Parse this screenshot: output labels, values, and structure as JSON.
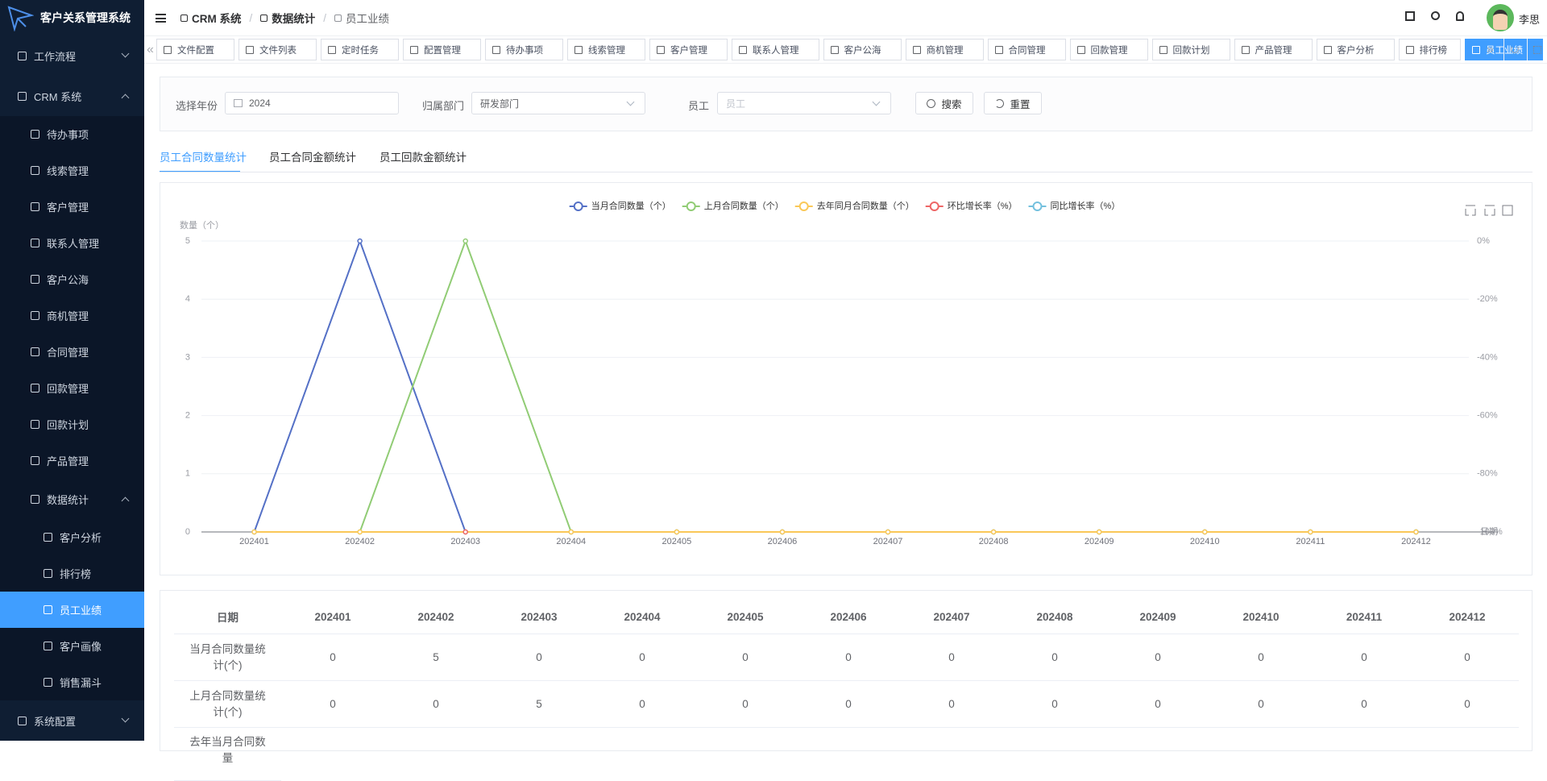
{
  "app": {
    "title": "客户关系管理系统"
  },
  "header": {
    "breadcrumb": [
      "CRM 系统",
      "数据统计",
      "员工业绩"
    ],
    "user": "李思"
  },
  "sidebar": {
    "menu": [
      {
        "label": "工作流程"
      },
      {
        "label": "CRM 系统",
        "children": [
          {
            "label": "待办事项"
          },
          {
            "label": "线索管理"
          },
          {
            "label": "客户管理"
          },
          {
            "label": "联系人管理"
          },
          {
            "label": "客户公海"
          },
          {
            "label": "商机管理"
          },
          {
            "label": "合同管理"
          },
          {
            "label": "回款管理"
          },
          {
            "label": "回款计划"
          },
          {
            "label": "产品管理"
          },
          {
            "label": "数据统计",
            "children": [
              {
                "label": "客户分析"
              },
              {
                "label": "排行榜"
              },
              {
                "label": "员工业绩",
                "active": true
              },
              {
                "label": "客户画像"
              },
              {
                "label": "销售漏斗"
              }
            ]
          }
        ]
      },
      {
        "label": "系统配置"
      }
    ]
  },
  "tags": {
    "items": [
      {
        "label": "文件配置"
      },
      {
        "label": "文件列表"
      },
      {
        "label": "定时任务"
      },
      {
        "label": "配置管理"
      },
      {
        "label": "待办事项"
      },
      {
        "label": "线索管理"
      },
      {
        "label": "客户管理"
      },
      {
        "label": "联系人管理"
      },
      {
        "label": "客户公海"
      },
      {
        "label": "商机管理"
      },
      {
        "label": "合同管理"
      },
      {
        "label": "回款管理"
      },
      {
        "label": "回款计划"
      },
      {
        "label": "产品管理"
      },
      {
        "label": "客户分析"
      },
      {
        "label": "排行榜"
      },
      {
        "label": "员工业绩",
        "active": true
      }
    ]
  },
  "filters": {
    "year_label": "选择年份",
    "year": "2024",
    "dept_label": "归属部门",
    "dept": "研发部门",
    "employee_label": "员工",
    "employee_placeholder": "员工",
    "search": "搜索",
    "reset": "重置"
  },
  "tabs": [
    {
      "label": "员工合同数量统计",
      "active": true
    },
    {
      "label": "员工合同金额统计"
    },
    {
      "label": "员工回款金额统计"
    }
  ],
  "chart_data": {
    "type": "line",
    "y_label": "数量（个）",
    "x_label": "日期",
    "categories": [
      "202401",
      "202402",
      "202403",
      "202404",
      "202405",
      "202406",
      "202407",
      "202408",
      "202409",
      "202410",
      "202411",
      "202412"
    ],
    "series": [
      {
        "name": "当月合同数量（个）",
        "color": "#5470c6",
        "values": [
          0,
          5,
          0,
          0,
          0,
          0,
          0,
          0,
          0,
          0,
          0,
          0
        ]
      },
      {
        "name": "上月合同数量（个）",
        "color": "#91cc75",
        "values": [
          0,
          0,
          5,
          0,
          0,
          0,
          0,
          0,
          0,
          0,
          0,
          0
        ]
      },
      {
        "name": "去年同月合同数量（个）",
        "color": "#fac858",
        "values": [
          0,
          0,
          0,
          0,
          0,
          0,
          0,
          0,
          0,
          0,
          0,
          0
        ]
      },
      {
        "name": "环比增长率（%）",
        "color": "#ee6666",
        "axis": "y2",
        "values": [
          null,
          null,
          -100,
          null,
          null,
          null,
          null,
          null,
          null,
          null,
          null,
          null
        ]
      },
      {
        "name": "同比增长率（%）",
        "color": "#73c0de",
        "axis": "y2",
        "values": [
          null,
          null,
          null,
          null,
          null,
          null,
          null,
          null,
          null,
          null,
          null,
          null
        ]
      }
    ],
    "ylim": [
      0,
      5
    ],
    "yticks": [
      0,
      1,
      2,
      3,
      4,
      5
    ],
    "y2lim": [
      -100,
      0
    ],
    "y2ticks": [
      {
        "value": 0,
        "label": "0%"
      },
      {
        "value": -20,
        "label": "-20%"
      },
      {
        "value": -40,
        "label": "-40%"
      },
      {
        "value": -60,
        "label": "-60%"
      },
      {
        "value": -80,
        "label": "-80%"
      },
      {
        "value": -100,
        "label": "-100%"
      }
    ],
    "grid": true,
    "legend": "top"
  },
  "table": {
    "header": [
      "日期",
      "202401",
      "202402",
      "202403",
      "202404",
      "202405",
      "202406",
      "202407",
      "202408",
      "202409",
      "202410",
      "202411",
      "202412"
    ],
    "rows": [
      [
        "当月合同数量统计(个)",
        "0",
        "5",
        "0",
        "0",
        "0",
        "0",
        "0",
        "0",
        "0",
        "0",
        "0",
        "0"
      ],
      [
        "上月合同数量统计(个)",
        "0",
        "0",
        "5",
        "0",
        "0",
        "0",
        "0",
        "0",
        "0",
        "0",
        "0",
        "0"
      ],
      [
        "去年当月合同数量"
      ]
    ]
  }
}
